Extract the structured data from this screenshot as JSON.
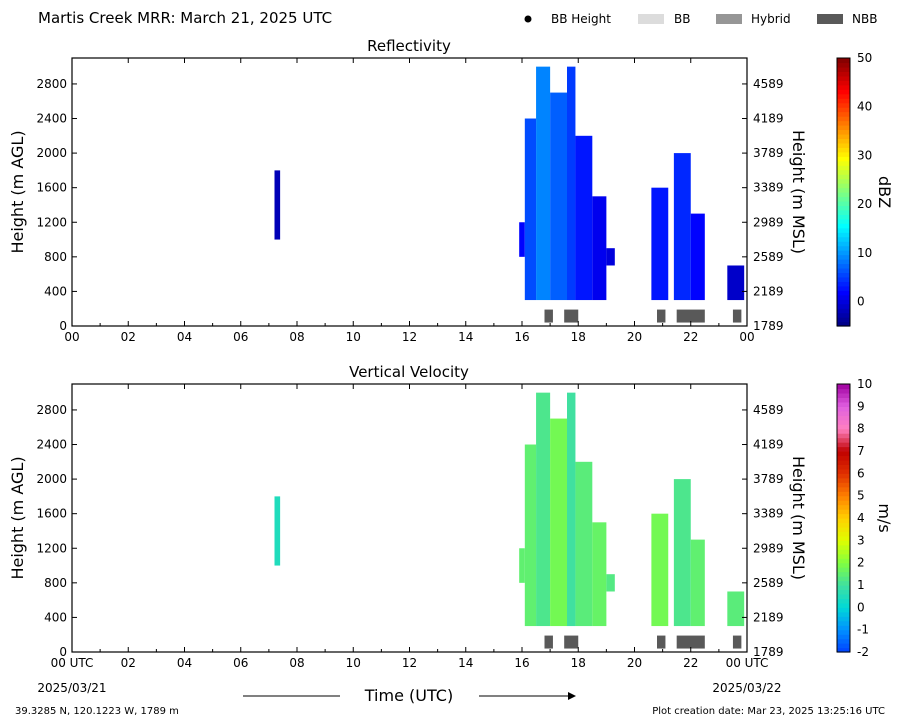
{
  "header": {
    "title": "Martis Creek MRR:  March 21, 2025 UTC",
    "legend": [
      {
        "label": "BB Height",
        "kind": "dot",
        "color": "#000000"
      },
      {
        "label": "BB",
        "kind": "box",
        "color": "#dcdcdc"
      },
      {
        "label": "Hybrid",
        "kind": "box",
        "color": "#969696"
      },
      {
        "label": "NBB",
        "kind": "box",
        "color": "#595959"
      }
    ]
  },
  "footer": {
    "location": "39.3285 N, 120.1223 W, 1789 m",
    "creation": "Plot creation date: Mar 23, 2025 13:25:16 UTC",
    "xlabel": "Time (UTC)",
    "start_label": "00 UTC",
    "start_date": "2025/03/21",
    "end_label": "00 UTC",
    "end_date": "2025/03/22"
  },
  "chart_data": [
    {
      "type": "heatmap",
      "title": "Reflectivity",
      "ylabel": "Height (m AGL)",
      "y2label": "Height (m MSL)",
      "xlim": [
        0,
        24
      ],
      "ylim": [
        0,
        3100
      ],
      "x_ticks": [
        "00",
        "02",
        "04",
        "06",
        "08",
        "10",
        "12",
        "14",
        "16",
        "18",
        "20",
        "22",
        "00"
      ],
      "y_ticks": [
        0,
        400,
        800,
        1200,
        1600,
        2000,
        2400,
        2800
      ],
      "y2_ticks": [
        1789,
        2189,
        2589,
        2989,
        3389,
        3789,
        4189,
        4589
      ],
      "colorbar": {
        "label": "dBZ",
        "min": -5,
        "max": 50,
        "ticks": [
          0,
          10,
          20,
          30,
          40,
          50
        ],
        "colors": [
          "#00007f",
          "#0000ff",
          "#007fff",
          "#00ffff",
          "#7fff7f",
          "#ffff00",
          "#ff7f00",
          "#ff0000",
          "#7f0000"
        ]
      },
      "echoes": [
        {
          "t0": 7.2,
          "t1": 7.4,
          "bottom": 1000,
          "top": 1800,
          "value": -2
        },
        {
          "t0": 15.9,
          "t1": 16.1,
          "bottom": 800,
          "top": 1200,
          "value": 2
        },
        {
          "t0": 16.1,
          "t1": 16.5,
          "bottom": 300,
          "top": 2400,
          "value": 6
        },
        {
          "t0": 16.5,
          "t1": 17.0,
          "bottom": 300,
          "top": 3000,
          "value": 9
        },
        {
          "t0": 17.0,
          "t1": 17.6,
          "bottom": 300,
          "top": 2700,
          "value": 7
        },
        {
          "t0": 17.6,
          "t1": 17.9,
          "bottom": 300,
          "top": 3000,
          "value": 5
        },
        {
          "t0": 17.9,
          "t1": 18.5,
          "bottom": 300,
          "top": 2200,
          "value": 3
        },
        {
          "t0": 18.5,
          "t1": 19.0,
          "bottom": 300,
          "top": 1500,
          "value": 1
        },
        {
          "t0": 19.0,
          "t1": 19.3,
          "bottom": 700,
          "top": 900,
          "value": 0
        },
        {
          "t0": 20.6,
          "t1": 21.2,
          "bottom": 300,
          "top": 1600,
          "value": 3
        },
        {
          "t0": 21.4,
          "t1": 22.0,
          "bottom": 300,
          "top": 2000,
          "value": 4
        },
        {
          "t0": 22.0,
          "t1": 22.5,
          "bottom": 300,
          "top": 1300,
          "value": 2
        },
        {
          "t0": 23.3,
          "t1": 23.9,
          "bottom": 300,
          "top": 700,
          "value": -1
        }
      ],
      "bb_bars": [
        {
          "t0": 16.8,
          "t1": 17.1,
          "class": "NBB"
        },
        {
          "t0": 17.5,
          "t1": 18.0,
          "class": "NBB"
        },
        {
          "t0": 20.8,
          "t1": 21.1,
          "class": "NBB"
        },
        {
          "t0": 21.5,
          "t1": 22.5,
          "class": "NBB"
        },
        {
          "t0": 23.5,
          "t1": 23.8,
          "class": "NBB"
        }
      ]
    },
    {
      "type": "heatmap",
      "title": "Vertical Velocity",
      "ylabel": "Height (m AGL)",
      "y2label": "Height (m MSL)",
      "xlim": [
        0,
        24
      ],
      "ylim": [
        0,
        3100
      ],
      "x_ticks": [
        "00 UTC",
        "02",
        "04",
        "06",
        "08",
        "10",
        "12",
        "14",
        "16",
        "18",
        "20",
        "22",
        "00 UTC"
      ],
      "y_ticks": [
        0,
        400,
        800,
        1200,
        1600,
        2000,
        2400,
        2800
      ],
      "y2_ticks": [
        1789,
        2189,
        2589,
        2989,
        3389,
        3789,
        4189,
        4589
      ],
      "colorbar": {
        "label": "m/s",
        "min": -2,
        "max": 10,
        "ticks": [
          -2,
          -1,
          0,
          1,
          2,
          3,
          4,
          5,
          6,
          7,
          8,
          9,
          10
        ],
        "colors": [
          "#0040ff",
          "#0090ff",
          "#00d8d8",
          "#40e0a0",
          "#80ff40",
          "#e0ff00",
          "#ffd000",
          "#ff8000",
          "#e03000",
          "#c00000",
          "#ff80c0",
          "#e060e0",
          "#a000a0"
        ]
      },
      "echoes": [
        {
          "t0": 7.2,
          "t1": 7.4,
          "bottom": 1000,
          "top": 1800,
          "value": 0.5
        },
        {
          "t0": 15.9,
          "t1": 16.1,
          "bottom": 800,
          "top": 1200,
          "value": 1.5
        },
        {
          "t0": 16.1,
          "t1": 16.5,
          "bottom": 300,
          "top": 2400,
          "value": 1.5
        },
        {
          "t0": 16.5,
          "t1": 17.0,
          "bottom": 300,
          "top": 3000,
          "value": 1.2
        },
        {
          "t0": 17.0,
          "t1": 17.6,
          "bottom": 300,
          "top": 2700,
          "value": 1.8
        },
        {
          "t0": 17.6,
          "t1": 17.9,
          "bottom": 300,
          "top": 3000,
          "value": 1.0
        },
        {
          "t0": 17.9,
          "t1": 18.5,
          "bottom": 300,
          "top": 2200,
          "value": 1.4
        },
        {
          "t0": 18.5,
          "t1": 19.0,
          "bottom": 300,
          "top": 1500,
          "value": 1.6
        },
        {
          "t0": 19.0,
          "t1": 19.3,
          "bottom": 700,
          "top": 900,
          "value": 1.3
        },
        {
          "t0": 20.6,
          "t1": 21.2,
          "bottom": 300,
          "top": 1600,
          "value": 1.8
        },
        {
          "t0": 21.4,
          "t1": 22.0,
          "bottom": 300,
          "top": 2000,
          "value": 1.2
        },
        {
          "t0": 22.0,
          "t1": 22.5,
          "bottom": 300,
          "top": 1300,
          "value": 1.5
        },
        {
          "t0": 23.3,
          "t1": 23.9,
          "bottom": 300,
          "top": 700,
          "value": 1.4
        }
      ],
      "bb_bars": [
        {
          "t0": 16.8,
          "t1": 17.1,
          "class": "NBB"
        },
        {
          "t0": 17.5,
          "t1": 18.0,
          "class": "NBB"
        },
        {
          "t0": 20.8,
          "t1": 21.1,
          "class": "NBB"
        },
        {
          "t0": 21.5,
          "t1": 22.5,
          "class": "NBB"
        },
        {
          "t0": 23.5,
          "t1": 23.8,
          "class": "NBB"
        }
      ]
    }
  ]
}
